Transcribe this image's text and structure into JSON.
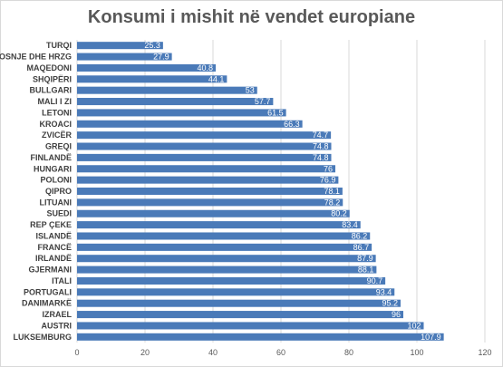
{
  "chart_data": {
    "type": "bar",
    "orientation": "horizontal",
    "title": "Konsumi i mishit në vendet europiane",
    "categories": [
      "TURQI",
      "BOSNJE DHE HRZG",
      "MAQEDONI",
      "SHQIPËRI",
      "BULLGARI",
      "MALI I ZI",
      "LETONI",
      "KROACI",
      "ZVICËR",
      "GREQI",
      "FINLANDË",
      "HUNGARI",
      "POLONI",
      "QIPRO",
      "LITUANI",
      "SUEDI",
      "REP ÇEKE",
      "ISLANDË",
      "FRANCË",
      "IRLANDË",
      "GJERMANI",
      "ITALI",
      "PORTUGALI",
      "DANIMARKË",
      "IZRAEL",
      "AUSTRI",
      "LUKSEMBURG"
    ],
    "values": [
      25.3,
      27.9,
      40.8,
      44.1,
      53,
      57.7,
      61.5,
      66.3,
      74.7,
      74.8,
      74.8,
      76,
      76.9,
      78.1,
      78.2,
      80.2,
      83.4,
      86.2,
      86.7,
      87.9,
      88.1,
      90.7,
      93.4,
      95.2,
      96,
      102,
      107.9
    ],
    "labels": [
      "25.3",
      "27.9",
      "40.8",
      "44.1",
      "53",
      "57.7",
      "61.5",
      "66.3",
      "74.7",
      "74.8",
      "74.8",
      "76",
      "76.9",
      "78.1",
      "78.2",
      "80.2",
      "83.4",
      "86.2",
      "86.7",
      "87.9",
      "88.1",
      "90.7",
      "93.4",
      "95.2",
      "96",
      "102",
      "107.9"
    ],
    "xticks": [
      "0",
      "20",
      "40",
      "60",
      "80",
      "100",
      "120"
    ],
    "xlim": [
      0,
      120
    ],
    "grid": true,
    "bar_color": "#4a7ab8",
    "data_label_color": "#ffffff"
  }
}
